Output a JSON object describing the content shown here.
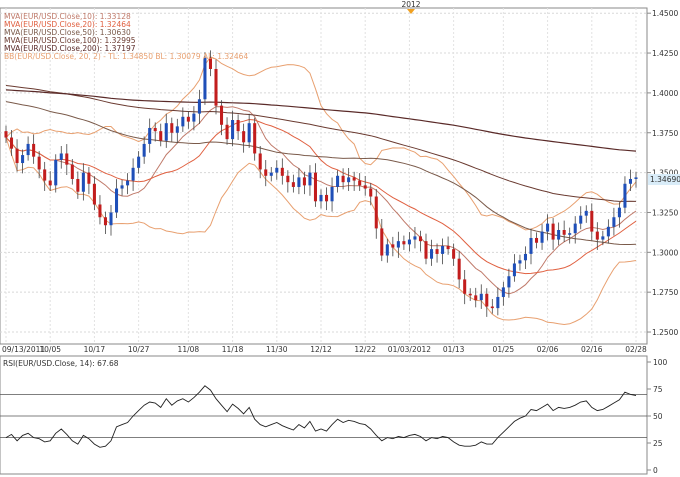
{
  "chart_data": [
    {
      "type": "candlestick",
      "top_marker": "2012",
      "legend": [
        {
          "text": "MVA(EUR/USD.Close,10): 1.33128",
          "color": "#c07a6a"
        },
        {
          "text": "MVA(EUR/USD.Close,20): 1.32464",
          "color": "#e06040"
        },
        {
          "text": "MVA(EUR/USD.Close,50): 1.30630",
          "color": "#7a5a4a"
        },
        {
          "text": "MVA(EUR/USD.Close,100): 1.32995",
          "color": "#6a3a30"
        },
        {
          "text": "MVA(EUR/USD.Close,200): 1.37197",
          "color": "#5a2a28"
        },
        {
          "text": "BB(EUR/USD.Close, 20, 2) -  TL: 1.34850  BL: 1.30079  AL: 1.32464",
          "color": "#e8a070"
        }
      ],
      "price_label": "1.34690",
      "x_labels": [
        "09/13/2011",
        "10/05",
        "10/17",
        "10/27",
        "11/08",
        "11/18",
        "11/30",
        "12/12",
        "12/22",
        "01/03/2012",
        "01/13",
        "01/25",
        "02/06",
        "02/16",
        "02/28"
      ],
      "y_ticks": [
        "1.4500",
        "1.4250",
        "1.4000",
        "1.3750",
        "1.3500",
        "1.3250",
        "1.3000",
        "1.2750",
        "1.2500"
      ],
      "ylim": [
        1.245,
        1.452
      ],
      "closes": [
        1.372,
        1.365,
        1.356,
        1.361,
        1.368,
        1.36,
        1.352,
        1.345,
        1.342,
        1.358,
        1.362,
        1.355,
        1.346,
        1.338,
        1.35,
        1.343,
        1.33,
        1.322,
        1.317,
        1.325,
        1.34,
        1.342,
        1.345,
        1.353,
        1.36,
        1.368,
        1.378,
        1.376,
        1.37,
        1.381,
        1.375,
        1.379,
        1.385,
        1.382,
        1.387,
        1.396,
        1.422,
        1.415,
        1.392,
        1.38,
        1.371,
        1.383,
        1.376,
        1.369,
        1.381,
        1.362,
        1.352,
        1.348,
        1.35,
        1.353,
        1.348,
        1.344,
        1.341,
        1.347,
        1.342,
        1.35,
        1.332,
        1.336,
        1.332,
        1.341,
        1.348,
        1.344,
        1.347,
        1.345,
        1.342,
        1.34,
        1.335,
        1.315,
        1.298,
        1.305,
        1.303,
        1.307,
        1.305,
        1.308,
        1.31,
        1.307,
        1.296,
        1.302,
        1.299,
        1.304,
        1.302,
        1.296,
        1.283,
        1.274,
        1.273,
        1.27,
        1.274,
        1.266,
        1.265,
        1.272,
        1.278,
        1.285,
        1.293,
        1.295,
        1.299,
        1.309,
        1.306,
        1.313,
        1.318,
        1.308,
        1.314,
        1.311,
        1.312,
        1.318,
        1.323,
        1.326,
        1.313,
        1.308,
        1.31,
        1.316,
        1.322,
        1.328,
        1.343,
        1.346,
        1.347
      ],
      "indicator": {
        "name": "RSI(EUR/USD.Close, 14): 67.68",
        "y_ticks": [
          "100",
          "75",
          "50",
          "25",
          "0"
        ],
        "ylim": [
          0,
          100
        ],
        "lines_at": [
          70,
          50,
          30
        ],
        "values": [
          30,
          33,
          27,
          32,
          34,
          30,
          29,
          26,
          27,
          34,
          38,
          33,
          27,
          24,
          32,
          29,
          24,
          21,
          22,
          27,
          40,
          42,
          44,
          50,
          55,
          60,
          63,
          62,
          58,
          66,
          60,
          64,
          66,
          63,
          67,
          72,
          78,
          74,
          66,
          60,
          54,
          61,
          57,
          52,
          58,
          47,
          42,
          40,
          42,
          44,
          41,
          39,
          37,
          42,
          39,
          45,
          36,
          38,
          36,
          42,
          47,
          44,
          46,
          45,
          43,
          42,
          38,
          32,
          27,
          30,
          29,
          31,
          30,
          32,
          33,
          31,
          27,
          30,
          29,
          31,
          30,
          26,
          23,
          22,
          22,
          23,
          26,
          24,
          24,
          30,
          35,
          40,
          45,
          48,
          50,
          56,
          55,
          58,
          61,
          55,
          58,
          57,
          58,
          60,
          63,
          64,
          58,
          55,
          56,
          59,
          62,
          65,
          72,
          70,
          69
        ]
      }
    }
  ]
}
